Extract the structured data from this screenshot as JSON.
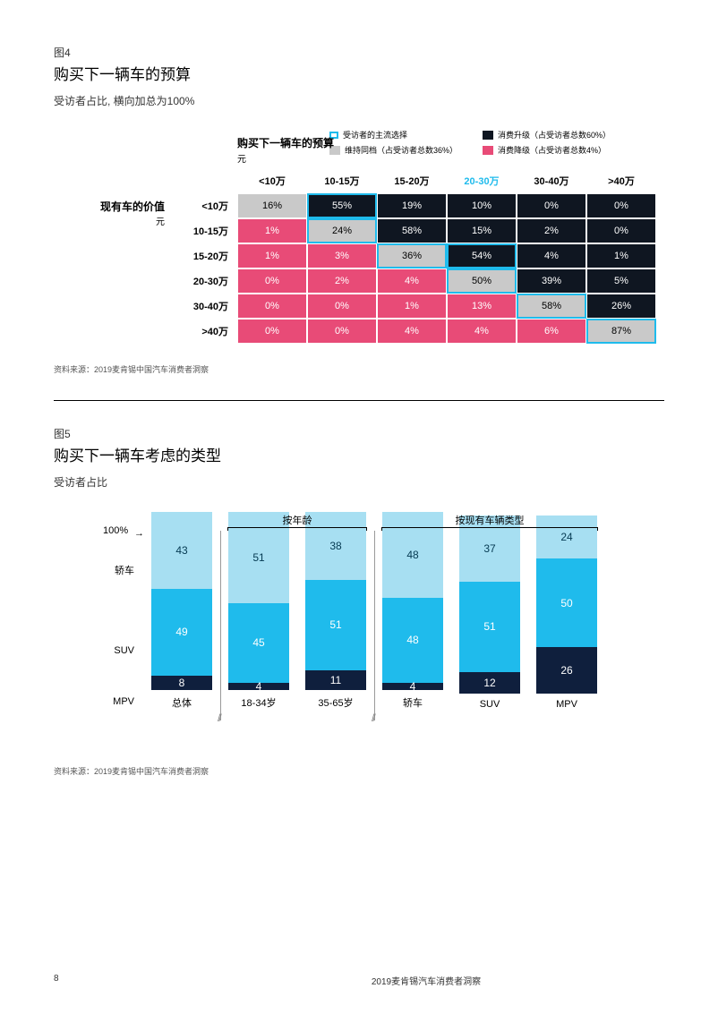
{
  "colors": {
    "black": "#0f1621",
    "pink": "#e84b77",
    "gray": "#c9c9c9",
    "cyan_outline": "#1fbbec",
    "sedan": "#a7dff2",
    "suv": "#1fbbec",
    "mpv": "#0f1f3d",
    "text_black": "#000000",
    "text_white": "#ffffff"
  },
  "fig4": {
    "label": "图4",
    "title": "购买下一辆车的预算",
    "subtitle": "受访者占比, 横向加总为100%",
    "legend": {
      "mainstream": "受访者的主流选择",
      "upgrade": "消费升级（占受访者总数60%）",
      "same": "维持同档（占受访者总数36%）",
      "downgrade": "消费降级（占受访者总数4%）"
    },
    "col_title": "购买下一辆车的预算",
    "col_title_sub": "元",
    "row_title": "现有车的价值",
    "row_title_sub": "元",
    "columns": [
      "<10万",
      "10-15万",
      "15-20万",
      "20-30万",
      "30-40万",
      ">40万"
    ],
    "highlight_col_index": 3,
    "rows": [
      "<10万",
      "10-15万",
      "15-20万",
      "20-30万",
      "30-40万",
      ">40万"
    ],
    "cells": [
      [
        {
          "v": "16%",
          "c": "gray",
          "hl": false
        },
        {
          "v": "55%",
          "c": "black",
          "hl": true
        },
        {
          "v": "19%",
          "c": "black",
          "hl": false
        },
        {
          "v": "10%",
          "c": "black",
          "hl": false
        },
        {
          "v": "0%",
          "c": "black",
          "hl": false
        },
        {
          "v": "0%",
          "c": "black",
          "hl": false
        }
      ],
      [
        {
          "v": "1%",
          "c": "pink",
          "hl": false
        },
        {
          "v": "24%",
          "c": "gray",
          "hl": true
        },
        {
          "v": "58%",
          "c": "black",
          "hl": false
        },
        {
          "v": "15%",
          "c": "black",
          "hl": false
        },
        {
          "v": "2%",
          "c": "black",
          "hl": false
        },
        {
          "v": "0%",
          "c": "black",
          "hl": false
        }
      ],
      [
        {
          "v": "1%",
          "c": "pink",
          "hl": false
        },
        {
          "v": "3%",
          "c": "pink",
          "hl": false
        },
        {
          "v": "36%",
          "c": "gray",
          "hl": true
        },
        {
          "v": "54%",
          "c": "black",
          "hl": true
        },
        {
          "v": "4%",
          "c": "black",
          "hl": false
        },
        {
          "v": "1%",
          "c": "black",
          "hl": false
        }
      ],
      [
        {
          "v": "0%",
          "c": "pink",
          "hl": false
        },
        {
          "v": "2%",
          "c": "pink",
          "hl": false
        },
        {
          "v": "4%",
          "c": "pink",
          "hl": false
        },
        {
          "v": "50%",
          "c": "gray",
          "hl": true
        },
        {
          "v": "39%",
          "c": "black",
          "hl": false
        },
        {
          "v": "5%",
          "c": "black",
          "hl": false
        }
      ],
      [
        {
          "v": "0%",
          "c": "pink",
          "hl": false
        },
        {
          "v": "0%",
          "c": "pink",
          "hl": false
        },
        {
          "v": "1%",
          "c": "pink",
          "hl": false
        },
        {
          "v": "13%",
          "c": "pink",
          "hl": false
        },
        {
          "v": "58%",
          "c": "gray",
          "hl": true
        },
        {
          "v": "26%",
          "c": "black",
          "hl": false
        }
      ],
      [
        {
          "v": "0%",
          "c": "pink",
          "hl": false
        },
        {
          "v": "0%",
          "c": "pink",
          "hl": false
        },
        {
          "v": "4%",
          "c": "pink",
          "hl": false
        },
        {
          "v": "4%",
          "c": "pink",
          "hl": false
        },
        {
          "v": "6%",
          "c": "pink",
          "hl": false
        },
        {
          "v": "87%",
          "c": "gray",
          "hl": true
        }
      ]
    ],
    "source": "资料来源：2019麦肯锡中国汽车消费者洞察"
  },
  "fig5": {
    "label": "图5",
    "title": "购买下一辆车考虑的类型",
    "subtitle": "受访者占比",
    "y_label": "100%",
    "groups": [
      {
        "label": "按年龄",
        "start": 1,
        "end": 2
      },
      {
        "label": "按现有车辆类型",
        "start": 3,
        "end": 5
      }
    ],
    "series_labels": {
      "sedan": "轿车",
      "suv": "SUV",
      "mpv": "MPV"
    },
    "bars": [
      {
        "label": "总体",
        "sedan": 43,
        "suv": 49,
        "mpv": 8,
        "sep_before": false
      },
      {
        "label": "18-34岁",
        "sedan": 51,
        "suv": 45,
        "mpv": 4,
        "sep_before": true
      },
      {
        "label": "35-65岁",
        "sedan": 38,
        "suv": 51,
        "mpv": 11,
        "sep_before": false
      },
      {
        "label": "轿车",
        "sedan": 48,
        "suv": 48,
        "mpv": 4,
        "sep_before": true
      },
      {
        "label": "SUV",
        "sedan": 37,
        "suv": 51,
        "mpv": 12,
        "sep_before": false
      },
      {
        "label": "MPV",
        "sedan": 24,
        "suv": 50,
        "mpv": 26,
        "sep_before": false
      }
    ],
    "source": "资料来源：2019麦肯锡中国汽车消费者洞察"
  },
  "footer": {
    "page": "8",
    "text": "2019麦肯锡汽车消费者洞察"
  }
}
